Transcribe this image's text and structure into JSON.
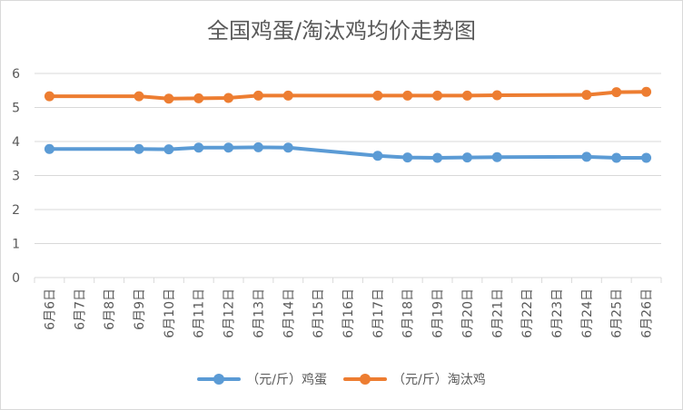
{
  "chart_data": {
    "type": "line",
    "title": "全国鸡蛋/淘汰鸡均价走势图",
    "xlabel": "",
    "ylabel": "",
    "ylim": [
      0,
      6
    ],
    "yticks": [
      "0",
      "1",
      "2",
      "3",
      "4",
      "5",
      "6"
    ],
    "grid": true,
    "legend_position": "bottom",
    "categories": [
      "6月6日",
      "6月7日",
      "6月8日",
      "6月9日",
      "6月10日",
      "6月11日",
      "6月12日",
      "6月13日",
      "6月14日",
      "6月15日",
      "6月16日",
      "6月17日",
      "6月18日",
      "6月19日",
      "6月20日",
      "6月21日",
      "6月22日",
      "6月23日",
      "6月24日",
      "6月25日",
      "6月26日"
    ],
    "series": [
      {
        "name": "（元/斤）鸡蛋",
        "color": "#5b9bd5",
        "values": [
          3.78,
          null,
          null,
          3.78,
          3.77,
          3.82,
          3.82,
          3.83,
          3.82,
          null,
          null,
          3.58,
          3.53,
          3.52,
          3.53,
          3.54,
          null,
          null,
          3.55,
          3.52,
          3.52
        ]
      },
      {
        "name": "（元/斤）淘汰鸡",
        "color": "#ed7d31",
        "values": [
          5.33,
          null,
          null,
          5.33,
          5.26,
          5.27,
          5.28,
          5.35,
          5.35,
          null,
          null,
          5.35,
          5.35,
          5.35,
          5.35,
          5.36,
          null,
          null,
          5.37,
          5.45,
          5.46
        ]
      }
    ]
  }
}
